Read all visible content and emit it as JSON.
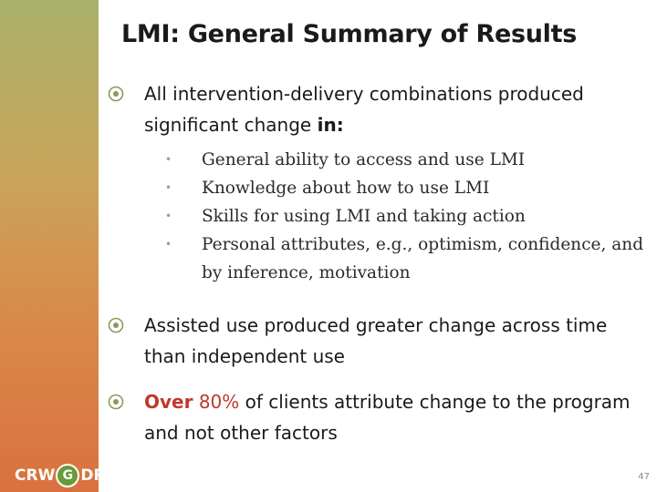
{
  "slide": {
    "title": "LMI: General Summary of Results",
    "number": "47"
  },
  "bullets": [
    {
      "text": "All intervention-delivery combinations produced significant change ",
      "emphasis": "in:"
    },
    {
      "text": "Assisted use produced greater change across time than independent use"
    },
    {
      "lead": "Over",
      "figure": "80%",
      "text": " of clients attribute change to the program and not other factors"
    }
  ],
  "sub_bullets": [
    "General ability to access and use LMI",
    "Knowledge about how to use LMI",
    "Skills for using LMI and taking action",
    "Personal attributes, e.g., optimism, confidence, and by inference, motivation"
  ],
  "logo": {
    "left": "CRW",
    "mid": "G",
    "right": "DRC"
  },
  "colors": {
    "accent_red": "#c0392b",
    "logo_green": "#6a9a3a"
  },
  "icons": [
    "target-bullet-icon"
  ]
}
